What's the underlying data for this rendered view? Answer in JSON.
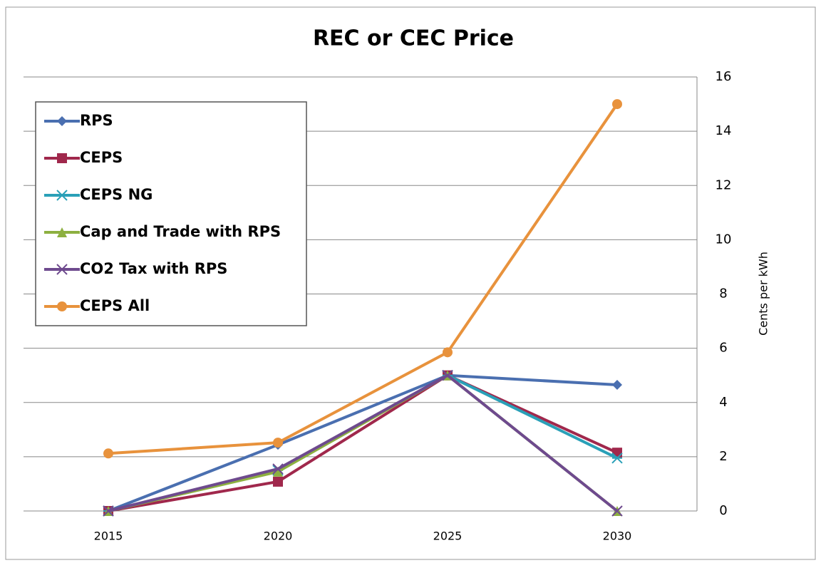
{
  "chart_data": {
    "type": "line",
    "title": "REC or CEC Price",
    "y_label": "Cents per kWh",
    "categories": [
      "2015",
      "2020",
      "2025",
      "2030"
    ],
    "series": [
      {
        "name": "RPS",
        "color": "#4a6fb0",
        "marker": "diamond",
        "values": [
          0,
          2.44,
          5.0,
          4.65
        ]
      },
      {
        "name": "CEPS",
        "color": "#a0284c",
        "marker": "square",
        "values": [
          0,
          1.08,
          5.0,
          2.15
        ]
      },
      {
        "name": "CEPS NG",
        "color": "#2aa0b8",
        "marker": "star",
        "values": [
          0,
          1.5,
          5.0,
          1.95
        ]
      },
      {
        "name": "Cap and Trade with RPS",
        "color": "#8db040",
        "marker": "triangle",
        "values": [
          0,
          1.45,
          5.0,
          0
        ]
      },
      {
        "name": "CO2 Tax with RPS",
        "color": "#6e4a8e",
        "marker": "x",
        "values": [
          0,
          1.55,
          5.0,
          0
        ]
      },
      {
        "name": "CEPS All",
        "color": "#e8923c",
        "marker": "circle",
        "values": [
          2.12,
          2.52,
          5.85,
          15.0
        ]
      }
    ],
    "ylim": [
      0,
      16
    ],
    "yticks": [
      0,
      2,
      4,
      6,
      8,
      10,
      12,
      14,
      16
    ],
    "grid": true,
    "y_axis_side": "right",
    "legend": "upper left"
  }
}
